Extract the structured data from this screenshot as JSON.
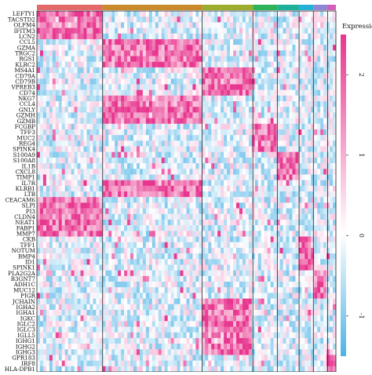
{
  "chart_data": {
    "type": "heatmap",
    "title": "",
    "xlabel": "",
    "ylabel": "",
    "genes": [
      "LEFTY1",
      "TACSTD2",
      "OLFM4",
      "IFITM3",
      "LCN2",
      "CCL5",
      "GZMA",
      "TRGC2",
      "RGS1",
      "KLRC2",
      "MS4A1",
      "CD79A",
      "CD79B",
      "VPREB3",
      "CD74",
      "NKG7",
      "CCL4",
      "GNLY",
      "GZMH",
      "GZMB",
      "FCGBP",
      "TFF3",
      "MUC2",
      "REG4",
      "SPINK4",
      "S100A9",
      "S100A8",
      "IL1B",
      "CXCL8",
      "TIMP1",
      "IL7R",
      "KLRB1",
      "LTB",
      "CEACAM6",
      "SLPI",
      "PI3",
      "CLDN4",
      "NEAT1",
      "FABP1",
      "MMP7",
      "CKB",
      "TFF1",
      "NOTUM",
      "BMP4",
      "ID1",
      "SPINK1",
      "PLA2G2A",
      "B3GNT7",
      "ADH1C",
      "MUC12",
      "PIGR",
      "JCHAIN",
      "IGHA2",
      "IGHA1",
      "IGKC",
      "IGLC2",
      "IGLC3",
      "IGLL5",
      "IGHG1",
      "IGHG2",
      "IGHG3",
      "GPR183",
      "IRF8",
      "HLA-DPB1"
    ],
    "clusters": [
      {
        "color": "#e46a6a",
        "cells": 0.175
      },
      {
        "color": "#c98a2c",
        "cells": 0.265
      },
      {
        "color": "#9cac2c",
        "cells": 0.135
      },
      {
        "color": "#2fb35a",
        "cells": 0.065
      },
      {
        "color": "#1fb09a",
        "cells": 0.058
      },
      {
        "color": "#22b0d4",
        "cells": 0.038
      },
      {
        "color": "#8f86d6",
        "cells": 0.038
      },
      {
        "color": "#d35fb8",
        "cells": 0.022
      }
    ],
    "gene_block_clusters": [
      0,
      0,
      0,
      0,
      0,
      1,
      1,
      1,
      1,
      1,
      2,
      2,
      2,
      2,
      2,
      1,
      1,
      1,
      1,
      1,
      3,
      3,
      3,
      3,
      3,
      4,
      4,
      4,
      4,
      4,
      1,
      1,
      1,
      0,
      0,
      0,
      0,
      0,
      0,
      0,
      5,
      5,
      5,
      5,
      5,
      5,
      6,
      6,
      6,
      6,
      6,
      2,
      2,
      2,
      2,
      2,
      2,
      2,
      2,
      2,
      2,
      7,
      7,
      7
    ],
    "legend": {
      "title": "Expression",
      "ticks": [
        2,
        1,
        0,
        -1
      ],
      "range": [
        -1.5,
        2.5
      ]
    },
    "colors": {
      "low": "#4eb3e6",
      "mid": "#ffffff",
      "high": "#e8368f"
    }
  }
}
